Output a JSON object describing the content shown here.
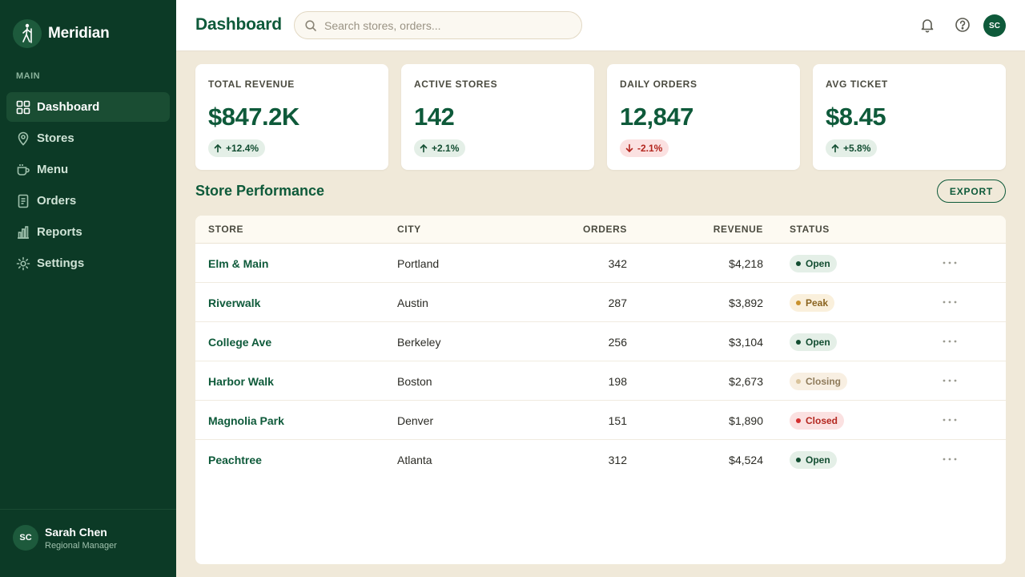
{
  "brand": {
    "name": "Meridian"
  },
  "sidebar": {
    "section_label": "MAIN",
    "items": [
      {
        "label": "Dashboard",
        "icon": "grid-icon",
        "active": true
      },
      {
        "label": "Stores",
        "icon": "map-pin-icon",
        "active": false
      },
      {
        "label": "Menu",
        "icon": "coffee-cup-icon",
        "active": false
      },
      {
        "label": "Orders",
        "icon": "receipt-icon",
        "active": false
      },
      {
        "label": "Reports",
        "icon": "bar-chart-icon",
        "active": false
      },
      {
        "label": "Settings",
        "icon": "gear-icon",
        "active": false
      }
    ],
    "user": {
      "initials": "SC",
      "name": "Sarah Chen",
      "role": "Regional Manager"
    }
  },
  "header": {
    "title": "Dashboard",
    "search_placeholder": "Search stores, orders...",
    "avatar_initials": "SC"
  },
  "stats": [
    {
      "label": "TOTAL REVENUE",
      "value": "$847.2K",
      "delta": "+12.4%",
      "trend": "up"
    },
    {
      "label": "ACTIVE STORES",
      "value": "142",
      "delta": "+2.1%",
      "trend": "up"
    },
    {
      "label": "DAILY ORDERS",
      "value": "12,847",
      "delta": "-2.1%",
      "trend": "down"
    },
    {
      "label": "AVG TICKET",
      "value": "$8.45",
      "delta": "+5.8%",
      "trend": "up"
    }
  ],
  "performance": {
    "title": "Store Performance",
    "export_label": "EXPORT",
    "columns": {
      "store": "STORE",
      "city": "CITY",
      "orders": "ORDERS",
      "revenue": "REVENUE",
      "status": "STATUS"
    },
    "rows": [
      {
        "store": "Elm & Main",
        "city": "Portland",
        "orders": "342",
        "revenue": "$4,218",
        "status": "Open"
      },
      {
        "store": "Riverwalk",
        "city": "Austin",
        "orders": "287",
        "revenue": "$3,892",
        "status": "Peak"
      },
      {
        "store": "College Ave",
        "city": "Berkeley",
        "orders": "256",
        "revenue": "$3,104",
        "status": "Open"
      },
      {
        "store": "Harbor Walk",
        "city": "Boston",
        "orders": "198",
        "revenue": "$2,673",
        "status": "Closing"
      },
      {
        "store": "Magnolia Park",
        "city": "Denver",
        "orders": "151",
        "revenue": "$1,890",
        "status": "Closed"
      },
      {
        "store": "Peachtree",
        "city": "Atlanta",
        "orders": "312",
        "revenue": "$4,524",
        "status": "Open"
      }
    ]
  },
  "status_colors": {
    "Open": {
      "bg": "#e4efe7",
      "fg": "#124d31",
      "dot": "#124d31"
    },
    "Peak": {
      "bg": "#faf0dc",
      "fg": "#8a6420",
      "dot": "#c9922e"
    },
    "Closing": {
      "bg": "#f8efe2",
      "fg": "#8e7a5a",
      "dot": "#d8c29a"
    },
    "Closed": {
      "bg": "#fbe1e1",
      "fg": "#b3261e",
      "dot": "#d32f2f"
    }
  }
}
